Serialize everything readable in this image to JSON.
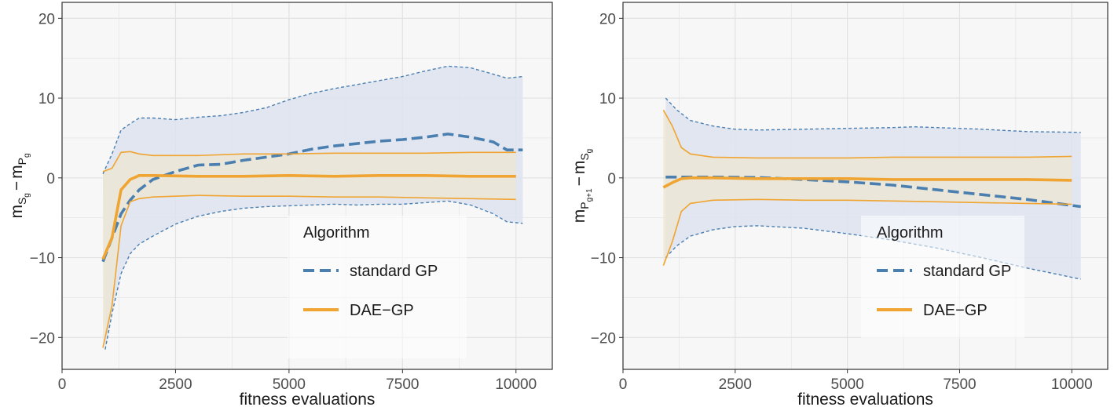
{
  "colors": {
    "standard_gp": "#4a7fb0",
    "dae_gp": "#f0a431",
    "standard_gp_fill": "#dde3f0",
    "dae_gp_fill": "#ece6d5",
    "panel_bg": "#f7f7f7",
    "grid": "#e2e2e2"
  },
  "chart_data": [
    {
      "type": "line",
      "xlabel": "fitness evaluations",
      "ylabel": {
        "main": "m",
        "s1": "S",
        "s1sub": "g",
        "minus": "−",
        "s2": "P",
        "s2sub": "g"
      },
      "xlim": [
        0,
        10800
      ],
      "ylim": [
        -24,
        22
      ],
      "x_ticks": [
        0,
        2500,
        5000,
        7500,
        10000
      ],
      "x_tick_labels": [
        "0",
        "2500",
        "5000",
        "7500",
        "10000"
      ],
      "y_ticks": [
        -20,
        -10,
        0,
        10,
        20
      ],
      "y_tick_labels": [
        "−20",
        "−10",
        "0",
        "10",
        "20"
      ],
      "grid": true,
      "legend": {
        "title": "Algorithm",
        "placement": "bottom-right",
        "entries": [
          "standard GP",
          "DAE−GP"
        ]
      },
      "series": [
        {
          "name": "standard GP",
          "style": "dashed",
          "mean": [
            [
              900,
              -10.5
            ],
            [
              1100,
              -7.5
            ],
            [
              1300,
              -4.5
            ],
            [
              1500,
              -2.8
            ],
            [
              1700,
              -1.5
            ],
            [
              2000,
              -0.2
            ],
            [
              2500,
              0.8
            ],
            [
              3000,
              1.6
            ],
            [
              3500,
              1.7
            ],
            [
              4000,
              2.2
            ],
            [
              4500,
              2.6
            ],
            [
              5000,
              3
            ],
            [
              5500,
              3.6
            ],
            [
              6000,
              4
            ],
            [
              6500,
              4.3
            ],
            [
              7000,
              4.6
            ],
            [
              7500,
              4.8
            ],
            [
              8000,
              5.1
            ],
            [
              8500,
              5.5
            ],
            [
              9000,
              5.1
            ],
            [
              9500,
              4.5
            ],
            [
              9800,
              3.5
            ],
            [
              10150,
              3.5
            ]
          ],
          "upper": [
            [
              900,
              0.5
            ],
            [
              1100,
              3
            ],
            [
              1300,
              6
            ],
            [
              1500,
              6.8
            ],
            [
              1700,
              7.5
            ],
            [
              2000,
              7.5
            ],
            [
              2500,
              7.3
            ],
            [
              3000,
              7.6
            ],
            [
              3500,
              7.8
            ],
            [
              4000,
              8.2
            ],
            [
              4500,
              8.8
            ],
            [
              5000,
              9.8
            ],
            [
              5500,
              10.6
            ],
            [
              6000,
              11.2
            ],
            [
              6500,
              11.7
            ],
            [
              7000,
              12.2
            ],
            [
              7500,
              12.7
            ],
            [
              8000,
              13.4
            ],
            [
              8500,
              14
            ],
            [
              9000,
              13.8
            ],
            [
              9500,
              13
            ],
            [
              9800,
              12.5
            ],
            [
              10150,
              12.7
            ]
          ],
          "lower": [
            [
              950,
              -21.5
            ],
            [
              1100,
              -17
            ],
            [
              1300,
              -12
            ],
            [
              1500,
              -9.5
            ],
            [
              1700,
              -8.3
            ],
            [
              2000,
              -7.3
            ],
            [
              2500,
              -5.8
            ],
            [
              3000,
              -4.8
            ],
            [
              3500,
              -4.2
            ],
            [
              4000,
              -3.8
            ],
            [
              4500,
              -3.6
            ],
            [
              5000,
              -3.5
            ],
            [
              5500,
              -3.4
            ],
            [
              6000,
              -3.3
            ],
            [
              6500,
              -3.4
            ],
            [
              7000,
              -3.3
            ],
            [
              7500,
              -3.3
            ],
            [
              8000,
              -3.1
            ],
            [
              8500,
              -2.9
            ],
            [
              9000,
              -3.4
            ],
            [
              9500,
              -4.5
            ],
            [
              9800,
              -5.5
            ],
            [
              10150,
              -5.7
            ]
          ]
        },
        {
          "name": "DAE−GP",
          "style": "solid",
          "mean": [
            [
              900,
              -10.2
            ],
            [
              1100,
              -7.5
            ],
            [
              1300,
              -1.5
            ],
            [
              1500,
              -0.2
            ],
            [
              1700,
              0.3
            ],
            [
              2000,
              0.3
            ],
            [
              3000,
              0.2
            ],
            [
              4000,
              0.2
            ],
            [
              5000,
              0.3
            ],
            [
              6000,
              0.2
            ],
            [
              7000,
              0.3
            ],
            [
              8000,
              0.3
            ],
            [
              9000,
              0.2
            ],
            [
              10000,
              0.2
            ]
          ],
          "upper": [
            [
              900,
              0.8
            ],
            [
              1100,
              1.2
            ],
            [
              1300,
              3.2
            ],
            [
              1500,
              3.3
            ],
            [
              1700,
              3
            ],
            [
              2000,
              2.8
            ],
            [
              3000,
              2.8
            ],
            [
              4000,
              3
            ],
            [
              5000,
              3
            ],
            [
              6000,
              3.1
            ],
            [
              7000,
              3.1
            ],
            [
              8000,
              3.1
            ],
            [
              9000,
              3.2
            ],
            [
              10000,
              3.2
            ]
          ],
          "lower": [
            [
              900,
              -21.3
            ],
            [
              1100,
              -16
            ],
            [
              1300,
              -6
            ],
            [
              1500,
              -3
            ],
            [
              1700,
              -2.6
            ],
            [
              2000,
              -2.4
            ],
            [
              3000,
              -2.2
            ],
            [
              4000,
              -2.3
            ],
            [
              5000,
              -2.3
            ],
            [
              6000,
              -2.4
            ],
            [
              7000,
              -2.4
            ],
            [
              8000,
              -2.5
            ],
            [
              9000,
              -2.6
            ],
            [
              10000,
              -2.7
            ]
          ]
        }
      ]
    },
    {
      "type": "line",
      "xlabel": "fitness evaluations",
      "ylabel": {
        "main": "m",
        "s1": "P",
        "s1sub": "g+1",
        "minus": "−",
        "s2": "S",
        "s2sub": "g"
      },
      "xlim": [
        0,
        10800
      ],
      "ylim": [
        -24,
        22
      ],
      "x_ticks": [
        0,
        2500,
        5000,
        7500,
        10000
      ],
      "x_tick_labels": [
        "0",
        "2500",
        "5000",
        "7500",
        "10000"
      ],
      "y_ticks": [
        -20,
        -10,
        0,
        10,
        20
      ],
      "y_tick_labels": [
        "−20",
        "−10",
        "0",
        "10",
        "20"
      ],
      "grid": true,
      "legend": {
        "title": "Algorithm",
        "placement": "bottom-right",
        "entries": [
          "standard GP",
          "DAE−GP"
        ]
      },
      "series": [
        {
          "name": "standard GP",
          "style": "dashed",
          "mean": [
            [
              950,
              0.1
            ],
            [
              2000,
              0.1
            ],
            [
              3000,
              0.05
            ],
            [
              4000,
              -0.2
            ],
            [
              5000,
              -0.5
            ],
            [
              6000,
              -0.9
            ],
            [
              7000,
              -1.5
            ],
            [
              8000,
              -2.1
            ],
            [
              9000,
              -2.7
            ],
            [
              10200,
              -3.6
            ]
          ],
          "upper": [
            [
              950,
              10
            ],
            [
              1200,
              8.5
            ],
            [
              1500,
              7.2
            ],
            [
              2000,
              6.5
            ],
            [
              2500,
              6.1
            ],
            [
              3000,
              6
            ],
            [
              4000,
              6.1
            ],
            [
              5000,
              6.2
            ],
            [
              6000,
              6.3
            ],
            [
              6500,
              6.4
            ],
            [
              7000,
              6.3
            ],
            [
              8000,
              6.1
            ],
            [
              9000,
              5.8
            ],
            [
              10200,
              5.7
            ]
          ],
          "lower": [
            [
              950,
              -10
            ],
            [
              1200,
              -8.5
            ],
            [
              1500,
              -7.3
            ],
            [
              2000,
              -6.5
            ],
            [
              2500,
              -6.1
            ],
            [
              3000,
              -6
            ],
            [
              4000,
              -6.3
            ],
            [
              5000,
              -7
            ],
            [
              6000,
              -7.8
            ],
            [
              7000,
              -8.8
            ],
            [
              8000,
              -10
            ],
            [
              9000,
              -11.3
            ],
            [
              10200,
              -12.7
            ]
          ]
        },
        {
          "name": "DAE−GP",
          "style": "solid",
          "mean": [
            [
              900,
              -1.2
            ],
            [
              1100,
              -0.6
            ],
            [
              1300,
              -0.1
            ],
            [
              1500,
              0
            ],
            [
              2000,
              0
            ],
            [
              3000,
              -0.1
            ],
            [
              4000,
              -0.1
            ],
            [
              5000,
              -0.1
            ],
            [
              6000,
              -0.2
            ],
            [
              7000,
              -0.2
            ],
            [
              8000,
              -0.2
            ],
            [
              9000,
              -0.2
            ],
            [
              10000,
              -0.3
            ]
          ],
          "upper": [
            [
              900,
              8.5
            ],
            [
              1100,
              6.5
            ],
            [
              1300,
              3.8
            ],
            [
              1500,
              3
            ],
            [
              2000,
              2.6
            ],
            [
              3000,
              2.5
            ],
            [
              4000,
              2.5
            ],
            [
              5000,
              2.5
            ],
            [
              6000,
              2.6
            ],
            [
              7000,
              2.6
            ],
            [
              8000,
              2.6
            ],
            [
              9000,
              2.6
            ],
            [
              10000,
              2.7
            ]
          ],
          "lower": [
            [
              900,
              -11
            ],
            [
              1100,
              -8
            ],
            [
              1300,
              -4.2
            ],
            [
              1500,
              -3.2
            ],
            [
              2000,
              -2.8
            ],
            [
              3000,
              -2.7
            ],
            [
              4000,
              -2.8
            ],
            [
              5000,
              -2.8
            ],
            [
              6000,
              -2.9
            ],
            [
              7000,
              -3
            ],
            [
              8000,
              -3.1
            ],
            [
              9000,
              -3.2
            ],
            [
              10000,
              -3.3
            ]
          ]
        }
      ]
    }
  ]
}
